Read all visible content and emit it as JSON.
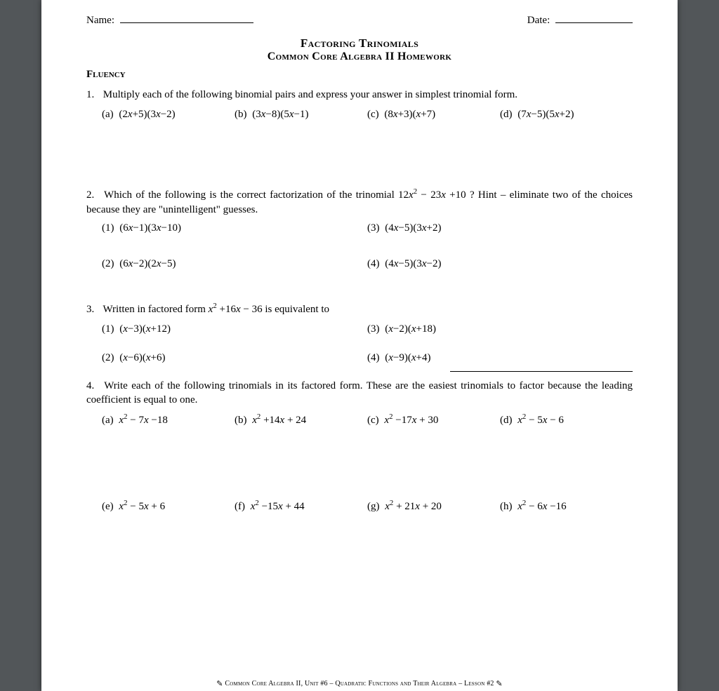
{
  "header": {
    "name_label": "Name:",
    "date_label": "Date:"
  },
  "titles": {
    "main": "Factoring Trinomials",
    "sub": "Common Core Algebra II Homework"
  },
  "section": "Fluency",
  "q1": {
    "num": "1.",
    "text": "Multiply each of the following binomial pairs and express your answer in simplest trinomial form.",
    "items": [
      {
        "label": "(a)",
        "expr": "(2<i>x</i>+5)(3<i>x</i>−2)"
      },
      {
        "label": "(b)",
        "expr": "(3<i>x</i>−8)(5<i>x</i>−1)"
      },
      {
        "label": "(c)",
        "expr": "(8<i>x</i>+3)(<i>x</i>+7)"
      },
      {
        "label": "(d)",
        "expr": "(7<i>x</i>−5)(5<i>x</i>+2)"
      }
    ]
  },
  "q2": {
    "num": "2.",
    "text_pre": "Which of the following is the correct factorization of the trinomial ",
    "trinomial": "12<i>x</i><sup>2</sup> − 23<i>x</i> +10",
    "text_post": " ? Hint – eliminate two of the choices because they are \"unintelligent\" guesses.",
    "row1": [
      {
        "label": "(1)",
        "expr": "(6<i>x</i>−1)(3<i>x</i>−10)"
      },
      {
        "label": "(3)",
        "expr": "(4<i>x</i>−5)(3<i>x</i>+2)"
      }
    ],
    "row2": [
      {
        "label": "(2)",
        "expr": "(6<i>x</i>−2)(2<i>x</i>−5)"
      },
      {
        "label": "(4)",
        "expr": "(4<i>x</i>−5)(3<i>x</i>−2)"
      }
    ]
  },
  "q3": {
    "num": "3.",
    "text_pre": "Written in factored form ",
    "trinomial": "<i>x</i><sup>2</sup> +16<i>x</i> − 36",
    "text_post": "  is equivalent to",
    "row1": [
      {
        "label": "(1)",
        "expr": "(<i>x</i>−3)(<i>x</i>+12)"
      },
      {
        "label": "(3)",
        "expr": "(<i>x</i>−2)(<i>x</i>+18)"
      }
    ],
    "row2": [
      {
        "label": "(2)",
        "expr": "(<i>x</i>−6)(<i>x</i>+6)"
      },
      {
        "label": "(4)",
        "expr": "(<i>x</i>−9)(<i>x</i>+4)"
      }
    ]
  },
  "q4": {
    "num": "4.",
    "text": "Write each of the following trinomials in its factored form.  These are the easiest trinomials to factor because the leading coefficient is equal to one.",
    "row1": [
      {
        "label": "(a)",
        "expr": "<i>x</i><sup>2</sup> − 7<i>x</i> −18"
      },
      {
        "label": "(b)",
        "expr": "<i>x</i><sup>2</sup> +14<i>x</i> + 24"
      },
      {
        "label": "(c)",
        "expr": "<i>x</i><sup>2</sup> −17<i>x</i> + 30"
      },
      {
        "label": "(d)",
        "expr": "<i>x</i><sup>2</sup> − 5<i>x</i> − 6"
      }
    ],
    "row2": [
      {
        "label": "(e)",
        "expr": "<i>x</i><sup>2</sup> − 5<i>x</i> + 6"
      },
      {
        "label": "(f)",
        "expr": "<i>x</i><sup>2</sup> −15<i>x</i> + 44"
      },
      {
        "label": "(g)",
        "expr": "<i>x</i><sup>2</sup> + 21<i>x</i> + 20"
      },
      {
        "label": "(h)",
        "expr": "<i>x</i><sup>2</sup> − 6<i>x</i> −16"
      }
    ]
  },
  "footer": {
    "text": "Common Core Algebra II, Unit #6 – Quadratic Functions and Their Algebra – Lesson #2"
  }
}
